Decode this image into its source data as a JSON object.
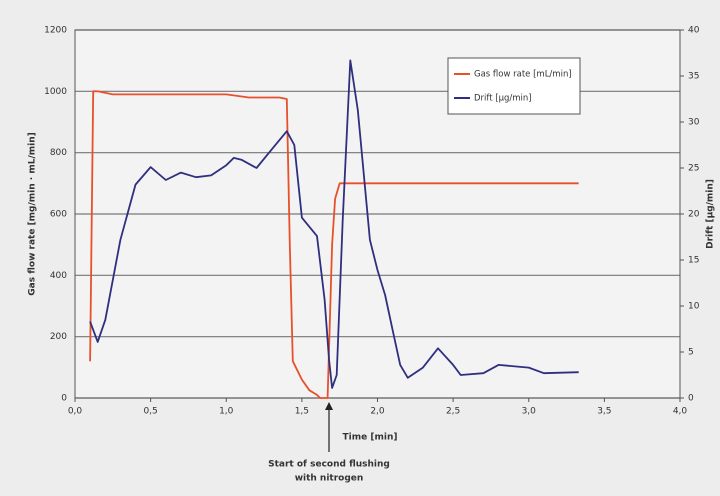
{
  "chart_data": {
    "type": "line",
    "xlabel": "Time [min]",
    "ylabel": "Gas flow rate [mg/min · mL/min]",
    "y2label": "Drift [µg/min]",
    "annotation": [
      "Start of second flushing",
      "with nitrogen"
    ],
    "xlim": [
      0,
      4
    ],
    "xticks": [
      {
        "value": 0,
        "label": "0,0"
      },
      {
        "value": 0.5,
        "label": "0,5"
      },
      {
        "value": 1,
        "label": "1,0"
      },
      {
        "value": 1.5,
        "label": "1,5"
      },
      {
        "value": 2,
        "label": "2,0"
      },
      {
        "value": 2.5,
        "label": "2,5"
      },
      {
        "value": 3,
        "label": "3,0"
      },
      {
        "value": 3.5,
        "label": "3,5"
      },
      {
        "value": 4,
        "label": "4,0"
      }
    ],
    "ylim": [
      0,
      1200
    ],
    "yticks": [
      0,
      200,
      400,
      600,
      800,
      1000,
      1200
    ],
    "y2lim": [
      0,
      40
    ],
    "y2ticks": [
      0,
      5,
      10,
      15,
      20,
      25,
      30,
      35,
      40
    ],
    "grid": true,
    "legend": "upper right",
    "series": [
      {
        "name": "Gas flow rate [mL/min]",
        "color": "#e8502c",
        "axis": "y",
        "x": [
          0.1,
          0.12,
          0.15,
          0.25,
          0.5,
          1.0,
          1.15,
          1.35,
          1.4,
          1.42,
          1.44,
          1.5,
          1.55,
          1.6,
          1.62,
          1.67,
          1.7,
          1.72,
          1.75,
          2.0,
          3.33
        ],
        "values": [
          120,
          1000,
          1000,
          990,
          990,
          990,
          980,
          980,
          975,
          500,
          120,
          60,
          25,
          10,
          0,
          0,
          500,
          650,
          700,
          700,
          700
        ]
      },
      {
        "name": "Drift [µg/min]",
        "color": "#2e2f7e",
        "axis": "y2",
        "x": [
          0.1,
          0.15,
          0.2,
          0.3,
          0.4,
          0.5,
          0.6,
          0.7,
          0.8,
          0.9,
          1.0,
          1.05,
          1.1,
          1.2,
          1.3,
          1.4,
          1.45,
          1.5,
          1.6,
          1.65,
          1.68,
          1.7,
          1.73,
          1.77,
          1.82,
          1.87,
          1.95,
          2.0,
          2.05,
          2.1,
          2.15,
          2.2,
          2.3,
          2.4,
          2.5,
          2.55,
          2.7,
          2.8,
          3.0,
          3.1,
          3.33
        ],
        "values": [
          8.3,
          6.1,
          8.5,
          17.2,
          23.2,
          25.1,
          23.7,
          24.5,
          24,
          24.2,
          25.3,
          26.1,
          25.9,
          25,
          27,
          29,
          27.5,
          19.6,
          17.6,
          10.7,
          4.1,
          1.1,
          2.5,
          19.3,
          36.7,
          31.3,
          17.2,
          13.9,
          11.2,
          7.4,
          3.6,
          2.2,
          3.3,
          5.4,
          3.6,
          2.5,
          2.7,
          3.6,
          3.3,
          2.7,
          2.8
        ]
      }
    ]
  }
}
